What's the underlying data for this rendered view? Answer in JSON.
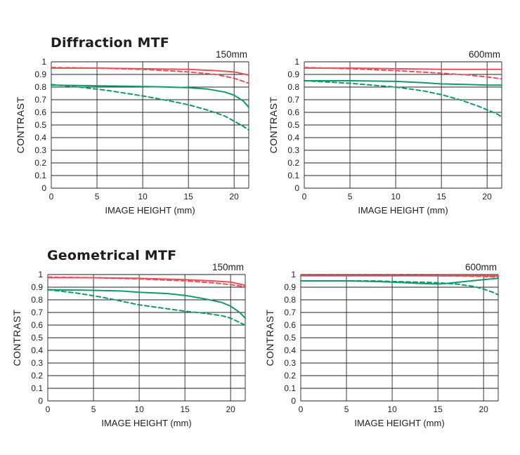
{
  "sections": [
    {
      "title": "Diffraction MTF"
    },
    {
      "title": "Geometrical MTF"
    }
  ],
  "colors": {
    "red": "#e8505b",
    "green": "#0f9a6a",
    "grid": "#222222"
  },
  "chart_data": [
    {
      "type": "line",
      "section": "Diffraction MTF",
      "corner_label": "150mm",
      "xlabel": "IMAGE HEIGHT (mm)",
      "ylabel": "CONTRAST",
      "xlim": [
        0,
        21.6
      ],
      "ylim": [
        0,
        1
      ],
      "xticks": [
        0,
        5,
        10,
        15,
        20
      ],
      "yticks": [
        0,
        0.1,
        0.2,
        0.3,
        0.4,
        0.5,
        0.6,
        0.7,
        0.8,
        0.9,
        1
      ],
      "ytick_labels": [
        "0",
        "0.1",
        "0.2",
        "0.3",
        "0.4",
        "0.5",
        "0.6",
        "0.7",
        "0.8",
        "0.9",
        "1"
      ],
      "grid": true,
      "series": [
        {
          "color": "#e8505b",
          "style": "solid",
          "x": [
            0,
            5,
            10,
            15,
            18,
            20,
            21.6
          ],
          "y": [
            0.95,
            0.95,
            0.945,
            0.94,
            0.93,
            0.92,
            0.895
          ]
        },
        {
          "color": "#e8505b",
          "style": "dashed",
          "x": [
            0,
            5,
            10,
            15,
            18,
            20,
            21.6
          ],
          "y": [
            0.955,
            0.95,
            0.94,
            0.92,
            0.9,
            0.87,
            0.83
          ]
        },
        {
          "color": "#0f9a6a",
          "style": "solid",
          "x": [
            0,
            5,
            10,
            13,
            15,
            17,
            19,
            20,
            21,
            21.6
          ],
          "y": [
            0.815,
            0.81,
            0.805,
            0.8,
            0.795,
            0.785,
            0.76,
            0.735,
            0.69,
            0.64
          ]
        },
        {
          "color": "#0f9a6a",
          "style": "dashed",
          "x": [
            0,
            3,
            6,
            10,
            13,
            15,
            17,
            19,
            20,
            21,
            21.6
          ],
          "y": [
            0.82,
            0.8,
            0.775,
            0.73,
            0.69,
            0.66,
            0.62,
            0.57,
            0.53,
            0.49,
            0.46
          ]
        }
      ]
    },
    {
      "type": "line",
      "section": "Diffraction MTF",
      "corner_label": "600mm",
      "xlabel": "IMAGE HEIGHT (mm)",
      "ylabel": "CONTRAST",
      "xlim": [
        0,
        21.6
      ],
      "ylim": [
        0,
        1
      ],
      "xticks": [
        0,
        5,
        10,
        15,
        20
      ],
      "yticks": [
        0,
        0.1,
        0.2,
        0.3,
        0.4,
        0.5,
        0.6,
        0.7,
        0.8,
        0.9,
        1
      ],
      "ytick_labels": [
        "0",
        "0.1",
        "0.2",
        "0.3",
        "0.4",
        "0.5",
        "0.6",
        "0.7",
        "0.8",
        "0.9",
        "1"
      ],
      "grid": true,
      "series": [
        {
          "color": "#e8505b",
          "style": "solid",
          "x": [
            0,
            5,
            10,
            15,
            20,
            21.6
          ],
          "y": [
            0.95,
            0.95,
            0.945,
            0.94,
            0.94,
            0.94
          ]
        },
        {
          "color": "#e8505b",
          "style": "dashed",
          "x": [
            0,
            5,
            10,
            15,
            18,
            20,
            21.6
          ],
          "y": [
            0.955,
            0.945,
            0.93,
            0.91,
            0.895,
            0.88,
            0.865
          ]
        },
        {
          "color": "#0f9a6a",
          "style": "solid",
          "x": [
            0,
            5,
            10,
            13,
            15,
            18,
            20,
            21.6
          ],
          "y": [
            0.85,
            0.85,
            0.845,
            0.835,
            0.825,
            0.82,
            0.815,
            0.815
          ]
        },
        {
          "color": "#0f9a6a",
          "style": "dashed",
          "x": [
            0,
            5,
            10,
            13,
            15,
            17,
            19,
            20,
            21,
            21.6
          ],
          "y": [
            0.85,
            0.83,
            0.8,
            0.77,
            0.74,
            0.7,
            0.65,
            0.62,
            0.59,
            0.565
          ]
        }
      ]
    },
    {
      "type": "line",
      "section": "Geometrical MTF",
      "corner_label": "150mm",
      "xlabel": "IMAGE HEIGHT (mm)",
      "ylabel": "CONTRAST",
      "xlim": [
        0,
        21.6
      ],
      "ylim": [
        0,
        1
      ],
      "xticks": [
        0,
        5,
        10,
        15,
        20
      ],
      "yticks": [
        0,
        0.1,
        0.2,
        0.3,
        0.4,
        0.5,
        0.6,
        0.7,
        0.8,
        0.9,
        1
      ],
      "ytick_labels": [
        "0",
        "0.1",
        "0.2",
        "0.3",
        "0.4",
        "0.5",
        "0.6",
        "0.7",
        "0.8",
        "0.9",
        "1"
      ],
      "grid": true,
      "series": [
        {
          "color": "#e8505b",
          "style": "solid",
          "x": [
            0,
            5,
            10,
            15,
            18,
            20,
            21,
            21.6
          ],
          "y": [
            0.975,
            0.975,
            0.97,
            0.96,
            0.95,
            0.94,
            0.925,
            0.915
          ]
        },
        {
          "color": "#e8505b",
          "style": "dashed",
          "x": [
            0,
            5,
            10,
            15,
            18,
            20,
            21,
            21.6
          ],
          "y": [
            0.98,
            0.975,
            0.965,
            0.95,
            0.935,
            0.92,
            0.91,
            0.905
          ]
        },
        {
          "color": "#0f9a6a",
          "style": "solid",
          "x": [
            0,
            5,
            8,
            10,
            13,
            15,
            17,
            19,
            20,
            21,
            21.6
          ],
          "y": [
            0.88,
            0.875,
            0.87,
            0.86,
            0.85,
            0.835,
            0.81,
            0.78,
            0.75,
            0.7,
            0.655
          ]
        },
        {
          "color": "#0f9a6a",
          "style": "dashed",
          "x": [
            0,
            3,
            6,
            8,
            10,
            13,
            15,
            17,
            19,
            20,
            21,
            21.6
          ],
          "y": [
            0.88,
            0.855,
            0.82,
            0.79,
            0.76,
            0.73,
            0.71,
            0.695,
            0.675,
            0.655,
            0.62,
            0.6
          ]
        }
      ]
    },
    {
      "type": "line",
      "section": "Geometrical MTF",
      "corner_label": "600mm",
      "xlabel": "IMAGE HEIGHT (mm)",
      "ylabel": "CONTRAST",
      "xlim": [
        0,
        21.6
      ],
      "ylim": [
        0,
        1
      ],
      "xticks": [
        0,
        5,
        10,
        15,
        20
      ],
      "yticks": [
        0,
        0.1,
        0.2,
        0.3,
        0.4,
        0.5,
        0.6,
        0.7,
        0.8,
        0.9,
        1
      ],
      "ytick_labels": [
        "0",
        "0.1",
        "0.2",
        "0.3",
        "0.4",
        "0.5",
        "0.6",
        "0.7",
        "0.8",
        "0.9",
        "1"
      ],
      "grid": true,
      "series": [
        {
          "color": "#e8505b",
          "style": "solid",
          "x": [
            0,
            5,
            10,
            15,
            20,
            21.6
          ],
          "y": [
            0.99,
            0.99,
            0.99,
            0.99,
            0.99,
            0.99
          ]
        },
        {
          "color": "#e8505b",
          "style": "dashed",
          "x": [
            0,
            5,
            10,
            15,
            20,
            21.6
          ],
          "y": [
            0.992,
            0.992,
            0.992,
            0.99,
            0.985,
            0.98
          ]
        },
        {
          "color": "#0f9a6a",
          "style": "solid",
          "x": [
            0,
            5,
            8,
            10,
            13,
            15,
            16,
            18,
            20,
            21.6
          ],
          "y": [
            0.95,
            0.95,
            0.945,
            0.94,
            0.93,
            0.925,
            0.93,
            0.945,
            0.96,
            0.97
          ]
        },
        {
          "color": "#0f9a6a",
          "style": "dashed",
          "x": [
            0,
            5,
            8,
            10,
            13,
            15,
            17,
            19,
            20,
            21,
            21.6
          ],
          "y": [
            0.95,
            0.95,
            0.95,
            0.945,
            0.94,
            0.935,
            0.925,
            0.905,
            0.885,
            0.86,
            0.84
          ]
        }
      ]
    }
  ]
}
